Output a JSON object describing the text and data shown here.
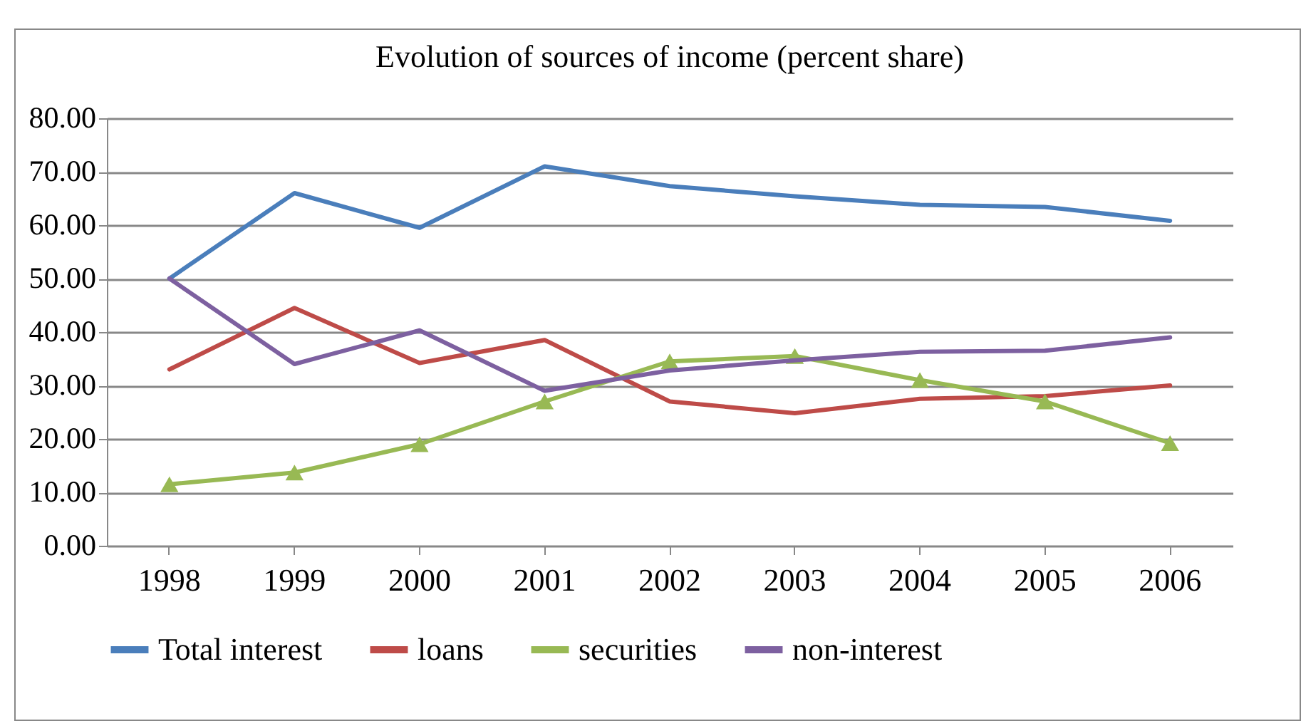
{
  "chart_data": {
    "type": "line",
    "title": "Evolution of sources of income (percent share)",
    "categories": [
      "1998",
      "1999",
      "2000",
      "2001",
      "2002",
      "2003",
      "2004",
      "2005",
      "2006"
    ],
    "series": [
      {
        "name": "Total interest",
        "color": "#4a7ebb",
        "values": [
          50,
          66,
          59.5,
          71,
          67.3,
          65.4,
          63.8,
          63.4,
          60.8
        ]
      },
      {
        "name": "loans",
        "color": "#be4b48",
        "values": [
          33,
          44.5,
          34.2,
          38.5,
          27,
          24.8,
          27.5,
          28,
          30
        ]
      },
      {
        "name": "securities",
        "color": "#98b954",
        "marker": "triangle",
        "values": [
          11.5,
          13.7,
          19,
          27,
          34.5,
          35.5,
          31,
          27,
          19.2
        ]
      },
      {
        "name": "non-interest",
        "color": "#7d60a0",
        "values": [
          50,
          34,
          40.3,
          29,
          32.8,
          34.7,
          36.3,
          36.5,
          39
        ]
      }
    ],
    "ylim": [
      0,
      80
    ],
    "yticks": [
      {
        "value": 0,
        "label": "0.00"
      },
      {
        "value": 10,
        "label": "10.00"
      },
      {
        "value": 20,
        "label": "20.00"
      },
      {
        "value": 30,
        "label": "30.00"
      },
      {
        "value": 40,
        "label": "40.00"
      },
      {
        "value": 50,
        "label": "50.00"
      },
      {
        "value": 60,
        "label": "60.00"
      },
      {
        "value": 70,
        "label": "70.00"
      },
      {
        "value": 80,
        "label": "80.00"
      }
    ],
    "grid": "y",
    "legend": "bottom",
    "marker": "none",
    "line_style": "solid"
  }
}
